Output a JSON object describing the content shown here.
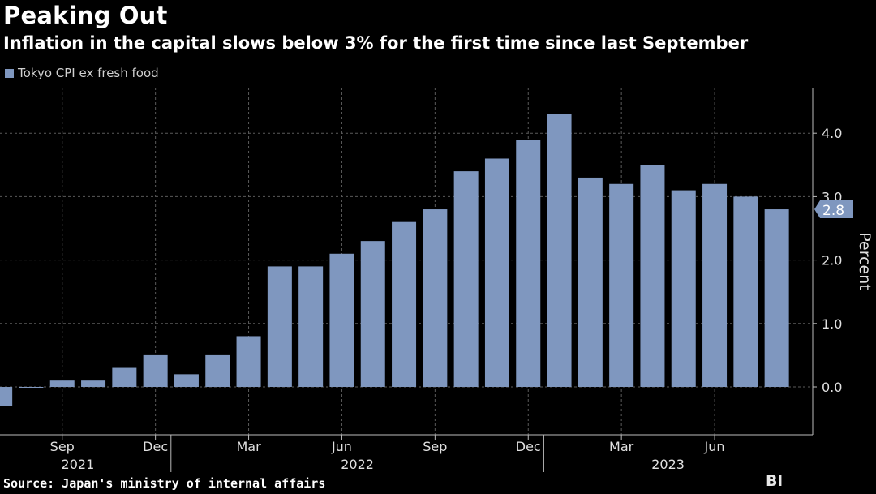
{
  "header": {
    "title": "Peaking Out",
    "subtitle": "Inflation in the capital slows below 3% for the first time since last September"
  },
  "footer": {
    "source": "Source: Japan's ministry of internal affairs",
    "brand": "Bl"
  },
  "colors": {
    "background": "#000000",
    "bar": "#7f97bf",
    "grid": "#5a5a5a",
    "text": "#ffffff"
  },
  "chart_data": {
    "type": "bar",
    "title": "Peaking Out",
    "subtitle": "Inflation in the capital slows below 3% for the first time since last September",
    "ylabel": "Percent",
    "ylim": [
      -0.3,
      4.7
    ],
    "yticks": [
      0.0,
      1.0,
      2.0,
      3.0,
      4.0
    ],
    "ytick_labels": [
      "0.0",
      "1.0",
      "2.0",
      "3.0",
      "4.0"
    ],
    "grid": true,
    "legend_position": "top-left",
    "series": [
      {
        "name": "Tokyo CPI ex fresh food",
        "color": "#7f97bf",
        "categories": [
          "2021-07",
          "2021-08",
          "2021-09",
          "2021-10",
          "2021-11",
          "2021-12",
          "2022-01",
          "2022-02",
          "2022-03",
          "2022-04",
          "2022-05",
          "2022-06",
          "2022-07",
          "2022-08",
          "2022-09",
          "2022-10",
          "2022-11",
          "2022-12",
          "2023-01",
          "2023-02",
          "2023-03",
          "2023-04",
          "2023-05",
          "2023-06",
          "2023-07",
          "2023-08"
        ],
        "values": [
          -0.3,
          0.0,
          0.1,
          0.1,
          0.3,
          0.5,
          0.2,
          0.5,
          0.8,
          1.9,
          1.9,
          2.1,
          2.3,
          2.6,
          2.8,
          3.4,
          3.6,
          3.9,
          4.3,
          3.3,
          3.2,
          3.5,
          3.1,
          3.2,
          3.0,
          2.8
        ]
      }
    ],
    "x_month_labels": [
      "Sep",
      "Dec",
      "Mar",
      "Jun",
      "Sep",
      "Dec",
      "Mar",
      "Jun"
    ],
    "x_year_labels": [
      "2021",
      "2022",
      "2023"
    ],
    "last_value_label": "2.8"
  }
}
